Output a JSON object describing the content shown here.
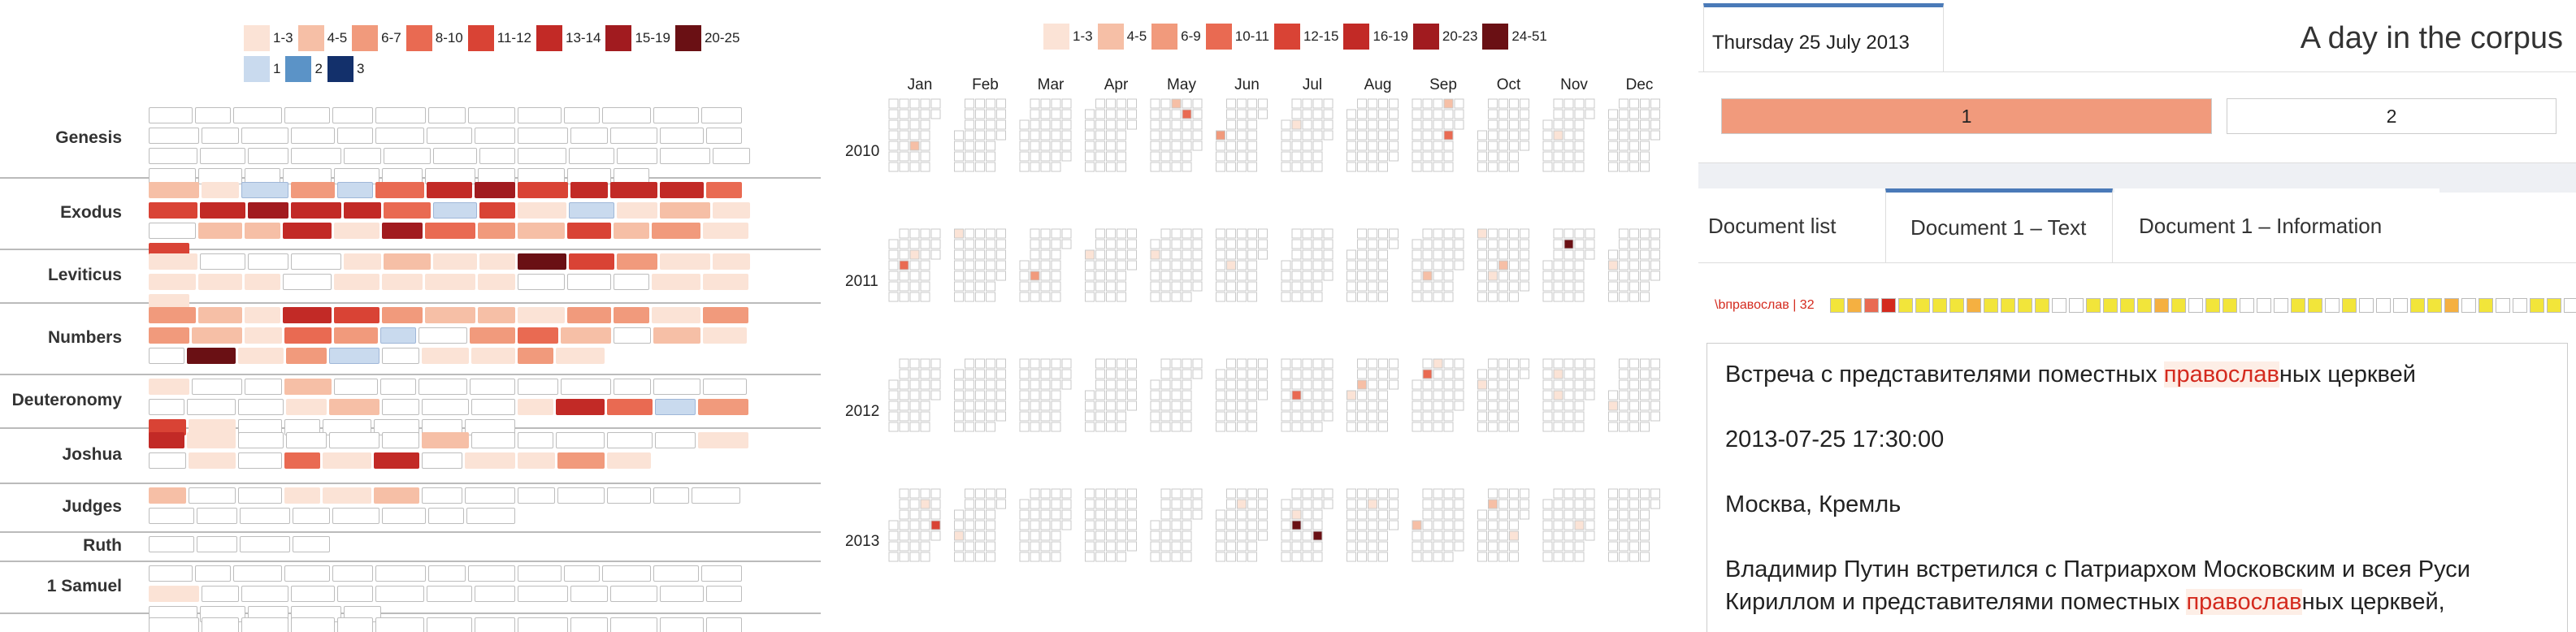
{
  "chapters_panel": {
    "legend_red": [
      {
        "label": "1-3",
        "color": "#fbe3d6"
      },
      {
        "label": "4-5",
        "color": "#f6bfa6"
      },
      {
        "label": "6-7",
        "color": "#f19a7c"
      },
      {
        "label": "8-10",
        "color": "#e96a52"
      },
      {
        "label": "11-12",
        "color": "#d94335"
      },
      {
        "label": "13-14",
        "color": "#c22a26"
      },
      {
        "label": "15-19",
        "color": "#a11b1f"
      },
      {
        "label": "20-25",
        "color": "#6a1014"
      }
    ],
    "legend_blue": [
      {
        "label": "1",
        "color": "#c9daee"
      },
      {
        "label": "2",
        "color": "#5b93c7"
      },
      {
        "label": "3",
        "color": "#13306b"
      }
    ],
    "books": [
      {
        "name": "Genesis",
        "chapters": [
          0,
          0,
          0,
          0,
          0,
          0,
          0,
          0,
          0,
          0,
          0,
          0,
          0,
          0,
          0,
          0,
          0,
          0,
          0,
          0,
          0,
          0,
          0,
          0,
          0,
          0,
          0,
          0,
          0,
          0,
          0,
          0,
          0,
          0,
          0,
          0,
          0,
          0,
          0,
          0,
          0,
          0,
          0,
          0,
          0,
          0,
          0,
          0,
          0,
          0
        ]
      },
      {
        "name": "Exodus",
        "chapters": [
          2,
          1,
          "b1",
          3,
          "b1",
          4,
          6,
          7,
          5,
          6,
          6,
          6,
          4,
          5,
          6,
          7,
          6,
          6,
          4,
          "b1",
          5,
          1,
          "b1",
          1,
          2,
          1,
          0,
          2,
          2,
          6,
          1,
          7,
          4,
          3,
          2,
          5,
          2,
          3,
          1,
          5
        ]
      },
      {
        "name": "Leviticus",
        "chapters": [
          1,
          0,
          0,
          0,
          1,
          2,
          1,
          1,
          8,
          5,
          3,
          1,
          1,
          1,
          1,
          1,
          0,
          1,
          1,
          1,
          1,
          0,
          0,
          0,
          1,
          1,
          1
        ]
      },
      {
        "name": "Numbers",
        "chapters": [
          3,
          2,
          1,
          6,
          5,
          3,
          2,
          2,
          1,
          3,
          3,
          1,
          3,
          3,
          2,
          1,
          4,
          3,
          "b1",
          0,
          3,
          4,
          2,
          0,
          2,
          1,
          0,
          8,
          1,
          3,
          "b1",
          0,
          1,
          1,
          3,
          1
        ]
      },
      {
        "name": "Deuteronomy",
        "chapters": [
          1,
          0,
          0,
          2,
          0,
          0,
          0,
          0,
          0,
          0,
          0,
          0,
          0,
          0,
          0,
          0,
          1,
          2,
          0,
          0,
          0,
          1,
          6,
          4,
          "b1",
          3,
          5,
          1,
          0,
          0,
          0,
          0,
          0,
          0
        ]
      },
      {
        "name": "Joshua",
        "chapters": [
          6,
          1,
          0,
          0,
          0,
          0,
          2,
          0,
          0,
          0,
          0,
          0,
          1,
          0,
          1,
          0,
          4,
          1,
          6,
          0,
          1,
          1,
          3,
          1
        ]
      },
      {
        "name": "Judges",
        "chapters": [
          2,
          0,
          0,
          1,
          1,
          2,
          0,
          0,
          0,
          0,
          0,
          0,
          0,
          0,
          0,
          0,
          0,
          0,
          0,
          0,
          0
        ]
      },
      {
        "name": "Ruth",
        "chapters": [
          0,
          0,
          0,
          0
        ]
      },
      {
        "name": "1 Samuel",
        "chapters": [
          0,
          0,
          0,
          0,
          0,
          0,
          0,
          0,
          0,
          0,
          0,
          0,
          0,
          1,
          0,
          0,
          0,
          0,
          0,
          0,
          0,
          0,
          0,
          0,
          0,
          0,
          0,
          0,
          0,
          0,
          0
        ]
      },
      {
        "name": "",
        "chapters": [
          0,
          0,
          0,
          0,
          0,
          0,
          0,
          0,
          0,
          0,
          0,
          0,
          0,
          0,
          0,
          0,
          0,
          0,
          0,
          0,
          0,
          0,
          0,
          0
        ]
      }
    ]
  },
  "calendar_panel": {
    "legend": [
      {
        "label": "1-3",
        "color": "#fbe3d6"
      },
      {
        "label": "4-5",
        "color": "#f6bfa6"
      },
      {
        "label": "6-9",
        "color": "#f19a7c"
      },
      {
        "label": "10-11",
        "color": "#e96a52"
      },
      {
        "label": "12-15",
        "color": "#d94335"
      },
      {
        "label": "16-19",
        "color": "#c22a26"
      },
      {
        "label": "20-23",
        "color": "#a11b1f"
      },
      {
        "label": "24-51",
        "color": "#6a1014"
      }
    ],
    "months": [
      "Jan",
      "Feb",
      "Mar",
      "Apr",
      "May",
      "Jun",
      "Jul",
      "Aug",
      "Sep",
      "Oct",
      "Nov",
      "Dec"
    ],
    "years": [
      "2010",
      "2011",
      "2012",
      "2013"
    ],
    "highlights": {
      "2010": [
        [
          0,
          2,
          4,
          2
        ],
        [
          4,
          2,
          0,
          2
        ],
        [
          4,
          3,
          1,
          4
        ],
        [
          5,
          0,
          3,
          3
        ],
        [
          6,
          1,
          2,
          1
        ],
        [
          8,
          3,
          0,
          2
        ],
        [
          8,
          3,
          3,
          4
        ],
        [
          9,
          0,
          1,
          2
        ],
        [
          10,
          1,
          3,
          1
        ]
      ],
      "2011": [
        [
          0,
          0,
          0,
          1
        ],
        [
          0,
          1,
          3,
          4
        ],
        [
          0,
          2,
          2,
          1
        ],
        [
          1,
          0,
          0,
          1
        ],
        [
          2,
          1,
          4,
          3
        ],
        [
          3,
          0,
          1,
          1
        ],
        [
          3,
          0,
          2,
          1
        ],
        [
          4,
          0,
          2,
          1
        ],
        [
          5,
          1,
          3,
          1
        ],
        [
          8,
          1,
          4,
          2
        ],
        [
          9,
          0,
          0,
          1
        ],
        [
          9,
          1,
          4,
          1
        ],
        [
          9,
          2,
          3,
          2
        ],
        [
          10,
          2,
          1,
          8
        ],
        [
          11,
          0,
          3,
          1
        ]
      ],
      "2012": [
        [
          6,
          1,
          3,
          4
        ],
        [
          7,
          0,
          3,
          1
        ],
        [
          7,
          1,
          2,
          2
        ],
        [
          8,
          0,
          1,
          1
        ],
        [
          8,
          1,
          1,
          4
        ],
        [
          8,
          2,
          0,
          1
        ],
        [
          9,
          0,
          2,
          1
        ],
        [
          10,
          1,
          1,
          1
        ],
        [
          10,
          1,
          3,
          1
        ],
        [
          11,
          0,
          4,
          1
        ]
      ],
      "2013": [
        [
          0,
          3,
          1,
          1
        ],
        [
          0,
          4,
          3,
          5
        ],
        [
          1,
          0,
          4,
          1
        ],
        [
          5,
          2,
          1,
          1
        ],
        [
          6,
          0,
          0,
          1
        ],
        [
          6,
          1,
          2,
          1
        ],
        [
          6,
          1,
          3,
          8
        ],
        [
          6,
          3,
          4,
          8
        ],
        [
          7,
          2,
          1,
          1
        ],
        [
          8,
          0,
          3,
          2
        ],
        [
          9,
          1,
          1,
          2
        ],
        [
          9,
          3,
          4,
          1
        ],
        [
          10,
          3,
          3,
          1
        ]
      ]
    }
  },
  "right_panel": {
    "date_tab": "Thursday 25 July 2013",
    "title": "A day in the corpus",
    "doc_buttons": [
      {
        "label": "1",
        "color": "#f19a7c"
      },
      {
        "label": "2",
        "color": "#ffffff"
      }
    ],
    "tabs": [
      "Document list",
      "Document 1 – Text",
      "Document 1 – Information"
    ],
    "strip_label": "\\bправослав | 32",
    "strip_cells": [
      "#f2e53a",
      "#f5b041",
      "#e96a52",
      "#d42a1e",
      "#f2e53a",
      "#f2e53a",
      "#f2e53a",
      "#f2e53a",
      "#f5b041",
      "#f2e53a",
      "#f2e53a",
      "#f2e53a",
      "#f2e53a",
      "#fff",
      "#fff",
      "#f2e53a",
      "#f2e53a",
      "#f2e53a",
      "#f2e53a",
      "#f5b041",
      "#f2e53a",
      "#fff",
      "#f2e53a",
      "#f2e53a",
      "#fff",
      "#fff",
      "#fff",
      "#f2e53a",
      "#f2e53a",
      "#fff",
      "#f2e53a",
      "#fff",
      "#fff",
      "#fff",
      "#f2e53a",
      "#f2e53a",
      "#f5b041",
      "#fff",
      "#f2e53a",
      "#fff",
      "#fff",
      "#f2e53a",
      "#f2e53a",
      "#fff",
      "#fff",
      "#f2e53a",
      "#f2e53a",
      "#fff",
      "#fff",
      "#f2e53a"
    ],
    "text": {
      "p1_before": "Встреча с представителями поместных ",
      "p1_hl": "православ",
      "p1_after": "ных церквей",
      "p2": "2013-07-25 17:30:00",
      "p3": "Москва, Кремль",
      "p4_before": "Владимир Путин встретился с Патриархом Московским и всея Руси Кириллом и представителями поместных ",
      "p4_hl": "православ",
      "p4_after": "ных церквей,"
    }
  }
}
